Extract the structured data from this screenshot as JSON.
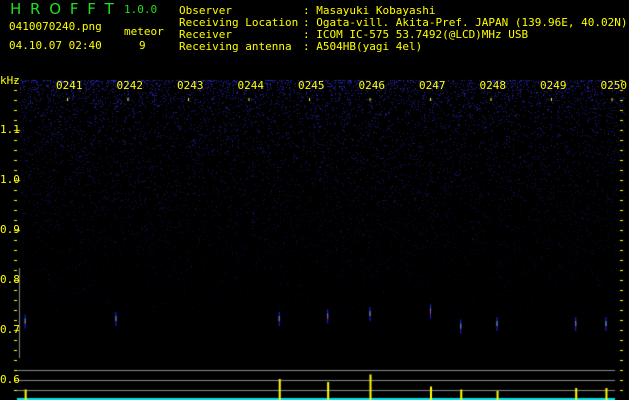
{
  "header": {
    "title": "H R O F F T",
    "version": "1.0.0",
    "filename": "0410070240.png",
    "datetime": "04.10.07 02:40",
    "meteor_label": "meteor",
    "meteor_count": "9",
    "info": [
      {
        "label": "Observer",
        "value": ": Masayuki Kobayashi"
      },
      {
        "label": "Receiving Location",
        "value": ": Ogata-vill. Akita-Pref. JAPAN (139.96E, 40.02N)"
      },
      {
        "label": "Receiver",
        "value": ": ICOM IC-575 53.7492(@LCD)MHz USB"
      },
      {
        "label": "Receiving antenna",
        "value": ": A504HB(yagi 4el)"
      }
    ]
  },
  "axis": {
    "y_unit": "kHz",
    "y_labels": [
      "1.1",
      "1.0",
      "0.9",
      "0.8",
      "0.7",
      "0.6"
    ],
    "x_labels": [
      "0241",
      "0242",
      "0243",
      "0244",
      "0245",
      "0246",
      "0247",
      "0248",
      "0249",
      "0250"
    ]
  },
  "colors": {
    "text": "#ffff00",
    "title": "#22dd22",
    "noise": "#1a1a8c",
    "bars": "#ffff00",
    "baseline": "#00e5e5"
  },
  "echoes": [
    {
      "time": "0240.3",
      "khz": 0.715
    },
    {
      "time": "0241.8",
      "khz": 0.72
    },
    {
      "time": "0244.5",
      "khz": 0.72
    },
    {
      "time": "0245.3",
      "khz": 0.725
    },
    {
      "time": "0246.0",
      "khz": 0.73
    },
    {
      "time": "0247.0",
      "khz": 0.735
    },
    {
      "time": "0247.5",
      "khz": 0.705
    },
    {
      "time": "0248.1",
      "khz": 0.71
    },
    {
      "time": "0249.4",
      "khz": 0.71
    },
    {
      "time": "0249.9",
      "khz": 0.71
    }
  ],
  "strength_bars": [
    {
      "time": "0240.3",
      "level": 0.35
    },
    {
      "time": "0244.5",
      "level": 0.7
    },
    {
      "time": "0245.3",
      "level": 0.6
    },
    {
      "time": "0246.0",
      "level": 0.85
    },
    {
      "time": "0247.0",
      "level": 0.45
    },
    {
      "time": "0247.5",
      "level": 0.35
    },
    {
      "time": "0248.1",
      "level": 0.3
    },
    {
      "time": "0249.4",
      "level": 0.4
    },
    {
      "time": "0249.9",
      "level": 0.4
    }
  ]
}
